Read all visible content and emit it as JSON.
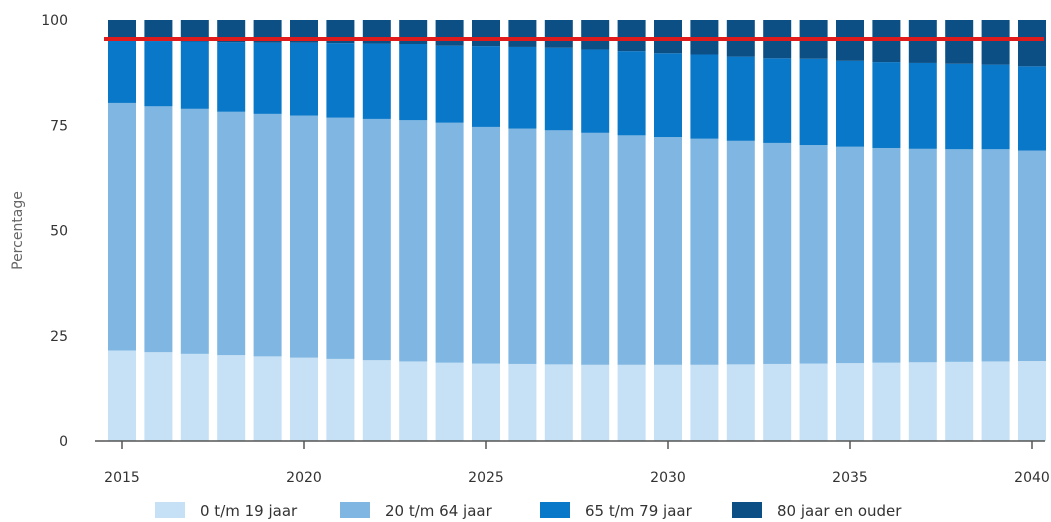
{
  "chart_data": {
    "type": "bar",
    "stacked": true,
    "ylabel": "Percentage",
    "ylim": [
      0,
      100
    ],
    "yticks": [
      "0",
      "25",
      "50",
      "75",
      "100"
    ],
    "xtick_labels": [
      "2015",
      "2020",
      "2025",
      "2030",
      "2035",
      "2040"
    ],
    "categories": [
      "2015",
      "2016",
      "2017",
      "2018",
      "2019",
      "2020",
      "2021",
      "2022",
      "2023",
      "2024",
      "2025",
      "2026",
      "2027",
      "2028",
      "2029",
      "2030",
      "2031",
      "2032",
      "2033",
      "2034",
      "2035",
      "2036",
      "2037",
      "2038",
      "2039",
      "2040"
    ],
    "series": [
      {
        "name": "0 t/m 19 jaar",
        "color": "#c6e0f5",
        "values": [
          21.5,
          21.1,
          20.7,
          20.4,
          20.1,
          19.8,
          19.5,
          19.2,
          18.9,
          18.6,
          18.4,
          18.3,
          18.2,
          18.1,
          18.1,
          18.1,
          18.1,
          18.2,
          18.3,
          18.4,
          18.5,
          18.6,
          18.7,
          18.8,
          18.9,
          19.0
        ]
      },
      {
        "name": "20 t/m 64 jaar",
        "color": "#7fb7e2",
        "values": [
          58.8,
          58.4,
          58.2,
          57.8,
          57.6,
          57.5,
          57.3,
          57.3,
          57.3,
          57.0,
          56.2,
          55.9,
          55.6,
          55.1,
          54.5,
          54.1,
          53.7,
          53.1,
          52.5,
          51.9,
          51.4,
          51.0,
          50.7,
          50.5,
          50.4,
          50.0
        ]
      },
      {
        "name": "65 t/m 79 jaar",
        "color": "#0a78c8",
        "values": [
          15.0,
          15.5,
          16.0,
          16.5,
          16.9,
          17.3,
          17.7,
          17.9,
          18.1,
          18.3,
          19.2,
          19.4,
          19.6,
          19.8,
          20.0,
          19.9,
          20.0,
          20.0,
          20.1,
          20.5,
          20.4,
          20.4,
          20.4,
          20.3,
          20.1,
          20.0
        ]
      },
      {
        "name": "80 jaar en ouder",
        "color": "#0b4f85",
        "values": [
          4.7,
          5.0,
          5.1,
          5.3,
          5.4,
          5.4,
          5.5,
          5.6,
          5.7,
          6.1,
          6.2,
          6.4,
          6.6,
          7.0,
          7.4,
          7.9,
          8.2,
          8.7,
          9.1,
          9.2,
          9.7,
          10.0,
          10.2,
          10.4,
          10.6,
          11.0
        ]
      }
    ],
    "reference_line": {
      "y": 95.5,
      "color": "#e01b1b"
    },
    "legend": "bottom",
    "grid": false
  }
}
